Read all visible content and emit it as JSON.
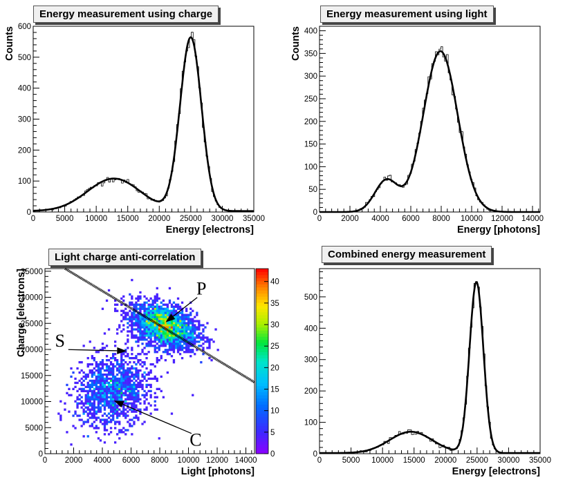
{
  "chart_data": [
    {
      "id": "charge",
      "type": "histogram",
      "title": "Energy measurement using charge",
      "xlabel": "Energy [electrons]",
      "ylabel": "Counts",
      "xlim": [
        0,
        35000
      ],
      "ylim": [
        0,
        600
      ],
      "xticks": [
        0,
        5000,
        10000,
        15000,
        20000,
        25000,
        30000,
        35000
      ],
      "yticks": [
        0,
        100,
        200,
        300,
        400,
        500,
        600
      ],
      "fit_peaks": [
        {
          "mu": 12800,
          "sigma": 4200,
          "amp": 105
        },
        {
          "mu": 25000,
          "sigma": 1700,
          "amp": 560
        }
      ],
      "fit_floor": 3
    },
    {
      "id": "light",
      "type": "histogram",
      "title": "Energy measurement using light",
      "xlabel": "Energy [photons]",
      "ylabel": "Counts",
      "xlim": [
        0,
        14500
      ],
      "ylim": [
        0,
        410
      ],
      "xticks": [
        0,
        2000,
        4000,
        6000,
        8000,
        10000,
        12000,
        14000
      ],
      "yticks": [
        0,
        50,
        100,
        150,
        200,
        250,
        300,
        350,
        400
      ],
      "fit_peaks": [
        {
          "mu": 4400,
          "sigma": 760,
          "amp": 70
        },
        {
          "mu": 7950,
          "sigma": 1130,
          "amp": 355
        }
      ],
      "fit_floor": 0
    },
    {
      "id": "scatter",
      "type": "heatmap",
      "title": "Light charge anti-correlation",
      "xlabel": "Light [photons]",
      "ylabel": "Charge [electrons]",
      "xlim": [
        0,
        14600
      ],
      "ylim": [
        0,
        35500
      ],
      "xticks": [
        0,
        2000,
        4000,
        6000,
        8000,
        10000,
        12000,
        14000
      ],
      "yticks": [
        0,
        5000,
        10000,
        15000,
        20000,
        25000,
        30000,
        35000
      ],
      "colorbar_ticks": [
        0,
        5,
        10,
        15,
        20,
        25,
        30,
        35,
        40
      ],
      "colorbar_max": 43,
      "clusters": [
        {
          "cx": 8300,
          "cy": 24500,
          "sx": 1150,
          "sy": 2200,
          "rho": -0.35,
          "n": 2600
        },
        {
          "cx": 4700,
          "cy": 12000,
          "sx": 1300,
          "sy": 3400,
          "rho": 0.15,
          "n": 1500
        }
      ],
      "line": {
        "x1": 1400,
        "y1": 35500,
        "x2": 14600,
        "y2": 13700
      },
      "annotations": [
        {
          "label": "P",
          "tx": 10900,
          "ty": 30500,
          "ax": 8400,
          "ay": 25200
        },
        {
          "label": "S",
          "tx": 1050,
          "ty": 20500,
          "ax": 5700,
          "ay": 19700
        },
        {
          "label": "C",
          "tx": 10500,
          "ty": 1500,
          "ax": 4800,
          "ay": 10200
        }
      ]
    },
    {
      "id": "combined",
      "type": "histogram",
      "title": "Combined energy measurement",
      "xlabel": "Energy [electrons]",
      "ylabel": "",
      "xlim": [
        0,
        35000
      ],
      "ylim": [
        0,
        590
      ],
      "xticks": [
        0,
        5000,
        10000,
        15000,
        20000,
        25000,
        30000,
        35000
      ],
      "yticks": [
        0,
        100,
        200,
        300,
        400,
        500
      ],
      "fit_peaks": [
        {
          "mu": 14500,
          "sigma": 3400,
          "amp": 68
        },
        {
          "mu": 24900,
          "sigma": 1100,
          "amp": 545
        }
      ],
      "fit_floor": 2
    }
  ]
}
